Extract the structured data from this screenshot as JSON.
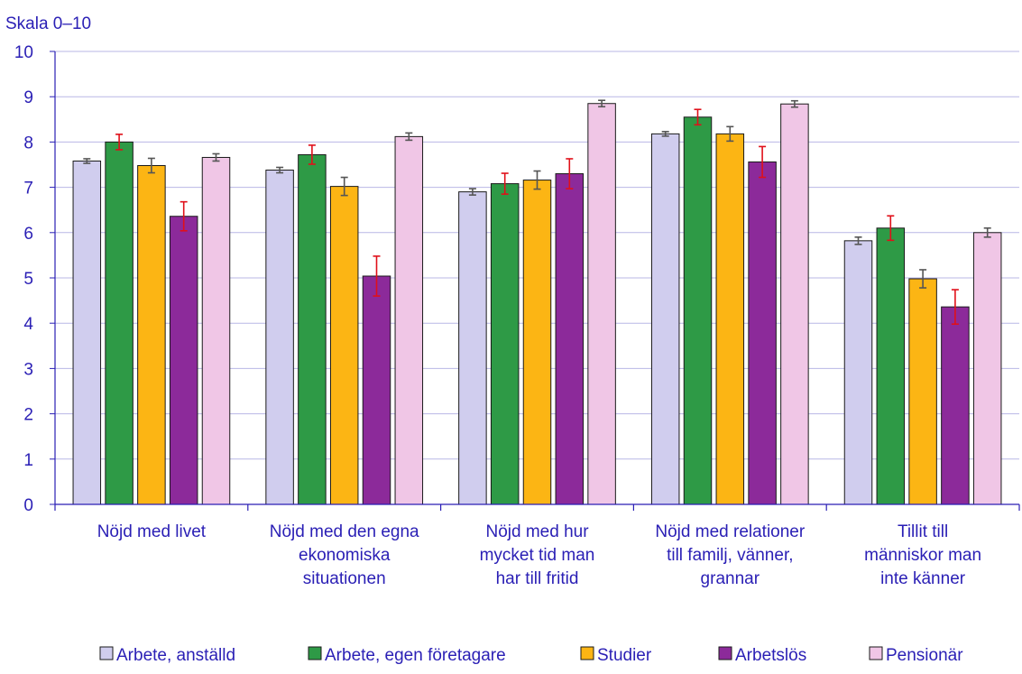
{
  "chart_data": {
    "type": "bar",
    "title": "",
    "unit_label": "Skala 0–10",
    "xlabel": "",
    "ylabel": "",
    "ylim": [
      0,
      10
    ],
    "yticks": [
      0,
      1,
      2,
      3,
      4,
      5,
      6,
      7,
      8,
      9,
      10
    ],
    "grid": true,
    "legend_position": "bottom",
    "categories": [
      [
        "Nöjd med livet"
      ],
      [
        "Nöjd med den egna",
        "ekonomiska",
        "situationen"
      ],
      [
        "Nöjd med hur",
        "mycket tid man",
        "har till fritid"
      ],
      [
        "Nöjd med relationer",
        "till familj, vänner,",
        "grannar"
      ],
      [
        "Tillit till",
        "människor man",
        "inte känner"
      ]
    ],
    "series": [
      {
        "name": "Arbete, anställd",
        "color": "#d0cdee",
        "error_color": "#555555",
        "values": [
          7.58,
          7.38,
          6.9,
          8.18,
          5.82
        ],
        "errors": [
          0.05,
          0.06,
          0.07,
          0.05,
          0.08
        ]
      },
      {
        "name": "Arbete, egen företagare",
        "color": "#2e9a46",
        "error_color": "#e0101a",
        "values": [
          8.0,
          7.72,
          7.08,
          8.55,
          6.1
        ],
        "errors": [
          0.17,
          0.21,
          0.23,
          0.17,
          0.27
        ]
      },
      {
        "name": "Studier",
        "color": "#fcb514",
        "error_color": "#555555",
        "values": [
          7.48,
          7.02,
          7.16,
          8.18,
          4.98
        ],
        "errors": [
          0.16,
          0.2,
          0.2,
          0.16,
          0.2
        ]
      },
      {
        "name": "Arbetslös",
        "color": "#8c2a9a",
        "error_color": "#e0101a",
        "values": [
          6.36,
          5.04,
          7.3,
          7.56,
          4.36
        ],
        "errors": [
          0.32,
          0.44,
          0.33,
          0.34,
          0.38
        ]
      },
      {
        "name": "Pensionär",
        "color": "#f0c6e6",
        "error_color": "#555555",
        "values": [
          7.66,
          8.12,
          8.85,
          8.84,
          6.0
        ],
        "errors": [
          0.08,
          0.08,
          0.07,
          0.07,
          0.1
        ]
      }
    ]
  }
}
